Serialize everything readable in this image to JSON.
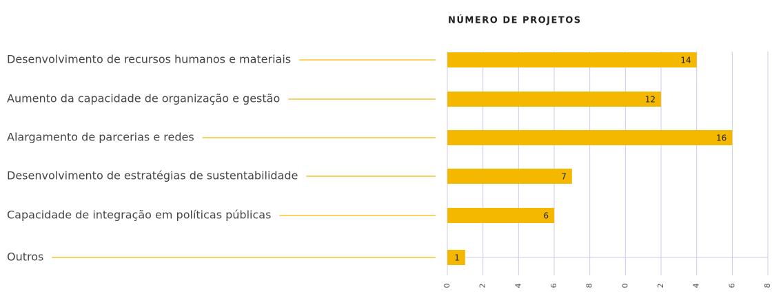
{
  "chart_data": {
    "type": "bar",
    "orientation": "horizontal",
    "title": "NÚMERO DE PROJETOS",
    "categories": [
      "Desenvolvimento de recursos humanos e materiais",
      "Aumento da capacidade de organização e gestão",
      "Alargamento de parcerias e redes",
      "Desenvolvimento de estratégias de sustentabilidade",
      "Capacidade de integração em políticas públicas",
      "Outros"
    ],
    "values": [
      14,
      12,
      16,
      7,
      6,
      1
    ],
    "color": "#f5b800",
    "xlim": [
      0,
      18
    ],
    "xticks": [
      0,
      2,
      4,
      6,
      8,
      {
        "value": 10,
        "label": "0"
      },
      {
        "value": 12,
        "label": "2"
      },
      {
        "value": 14,
        "label": "4"
      },
      {
        "value": 16,
        "label": "6"
      },
      {
        "value": 18,
        "label": "8"
      }
    ],
    "grid": true
  }
}
